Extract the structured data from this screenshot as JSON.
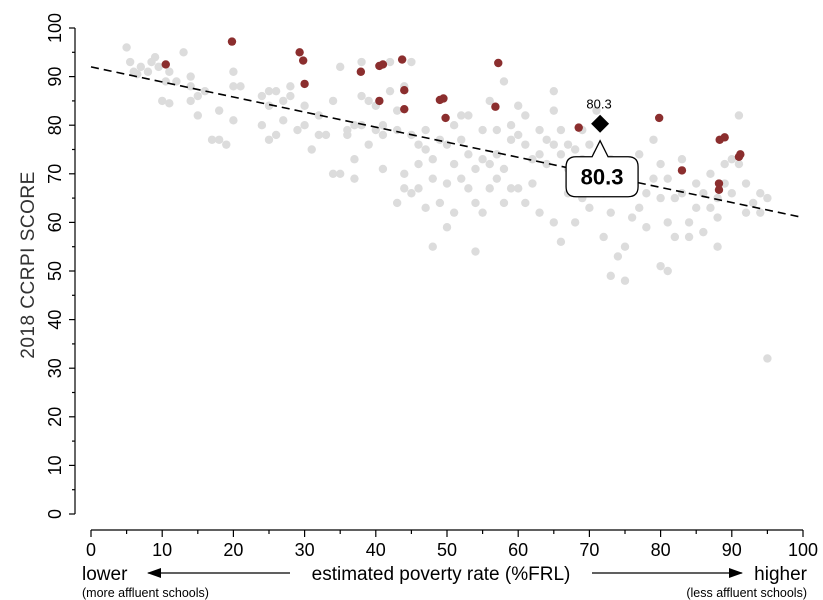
{
  "chart_data": {
    "type": "scatter",
    "title": "",
    "ylabel": "2018 CCRPI SCORE",
    "xlabel": "estimated poverty rate (%FRL)",
    "x_low_label": "lower",
    "x_low_sub": "(more affluent schools)",
    "x_high_label": "higher",
    "x_high_sub": "(less affluent schools)",
    "xlim": [
      0,
      100
    ],
    "ylim": [
      0,
      100
    ],
    "x_ticks": [
      "0",
      "10",
      "20",
      "30",
      "40",
      "50",
      "60",
      "70",
      "80",
      "90",
      "100"
    ],
    "y_ticks": [
      "0",
      "10",
      "20",
      "30",
      "40",
      "50",
      "60",
      "70",
      "80",
      "90",
      "100"
    ],
    "colors": {
      "other": "#dcdcdc",
      "highlight": "#8b2e2e",
      "target": "#000000",
      "trend": "#000000"
    },
    "trend_line": {
      "x": [
        0,
        100
      ],
      "y": [
        92,
        61
      ]
    },
    "target": {
      "x": 71.5,
      "y": 80.3,
      "label": "80.3",
      "callout": "80.3"
    },
    "series": [
      {
        "name": "",
        "color": "#dcdcdc",
        "points": [
          [
            5,
            96
          ],
          [
            5.5,
            93
          ],
          [
            6,
            91
          ],
          [
            6.5,
            90.5
          ],
          [
            7,
            92
          ],
          [
            8,
            91
          ],
          [
            8.5,
            93
          ],
          [
            9,
            94
          ],
          [
            9.5,
            92
          ],
          [
            10,
            85
          ],
          [
            10.5,
            89
          ],
          [
            11,
            84.5
          ],
          [
            11,
            91
          ],
          [
            12,
            89
          ],
          [
            13,
            95
          ],
          [
            14,
            90
          ],
          [
            14,
            88
          ],
          [
            14,
            85
          ],
          [
            15,
            82
          ],
          [
            15,
            86
          ],
          [
            16,
            87
          ],
          [
            17,
            77
          ],
          [
            18,
            77
          ],
          [
            18,
            83
          ],
          [
            19,
            76
          ],
          [
            20,
            81
          ],
          [
            20,
            88
          ],
          [
            20,
            91
          ],
          [
            21,
            88
          ],
          [
            24,
            80
          ],
          [
            24,
            86
          ],
          [
            25,
            87
          ],
          [
            25,
            77
          ],
          [
            25,
            84
          ],
          [
            26,
            78
          ],
          [
            26,
            87
          ],
          [
            27,
            85
          ],
          [
            27,
            81
          ],
          [
            28,
            86
          ],
          [
            28,
            88
          ],
          [
            29,
            79
          ],
          [
            30,
            84
          ],
          [
            30,
            80
          ],
          [
            31,
            75
          ],
          [
            32,
            82
          ],
          [
            32,
            78
          ],
          [
            33,
            78
          ],
          [
            34,
            85
          ],
          [
            34,
            70
          ],
          [
            35,
            70
          ],
          [
            35,
            92
          ],
          [
            36,
            79
          ],
          [
            36,
            78
          ],
          [
            37,
            80
          ],
          [
            37,
            69
          ],
          [
            37,
            73
          ],
          [
            38,
            86
          ],
          [
            38,
            93
          ],
          [
            38,
            80
          ],
          [
            39,
            85
          ],
          [
            39,
            76
          ],
          [
            40,
            84
          ],
          [
            40,
            79
          ],
          [
            41,
            80
          ],
          [
            41,
            78
          ],
          [
            41,
            71
          ],
          [
            42,
            93
          ],
          [
            42,
            87
          ],
          [
            43,
            83
          ],
          [
            43,
            79
          ],
          [
            43,
            64
          ],
          [
            44,
            88
          ],
          [
            44,
            70
          ],
          [
            44,
            67
          ],
          [
            45,
            93
          ],
          [
            45,
            78
          ],
          [
            45,
            66
          ],
          [
            46,
            72
          ],
          [
            46,
            76
          ],
          [
            46,
            67
          ],
          [
            47,
            79
          ],
          [
            47,
            75
          ],
          [
            47,
            63
          ],
          [
            48,
            55
          ],
          [
            48,
            73
          ],
          [
            48,
            69
          ],
          [
            49,
            64
          ],
          [
            49,
            77
          ],
          [
            50,
            76
          ],
          [
            50,
            68
          ],
          [
            50,
            59
          ],
          [
            51,
            80
          ],
          [
            51,
            72
          ],
          [
            51,
            62
          ],
          [
            52,
            82
          ],
          [
            52,
            77
          ],
          [
            52,
            69
          ],
          [
            53,
            82
          ],
          [
            53,
            74
          ],
          [
            53,
            67
          ],
          [
            54,
            71
          ],
          [
            54,
            64
          ],
          [
            54,
            54
          ],
          [
            55,
            79
          ],
          [
            55,
            73
          ],
          [
            55,
            62
          ],
          [
            56,
            85
          ],
          [
            56,
            72
          ],
          [
            56,
            67
          ],
          [
            57,
            79
          ],
          [
            57,
            74
          ],
          [
            57,
            69
          ],
          [
            58,
            89
          ],
          [
            58,
            71
          ],
          [
            58,
            64
          ],
          [
            59,
            80
          ],
          [
            59,
            77
          ],
          [
            59,
            67
          ],
          [
            60,
            84
          ],
          [
            60,
            78
          ],
          [
            60,
            67
          ],
          [
            61,
            82
          ],
          [
            61,
            76
          ],
          [
            61,
            64
          ],
          [
            62,
            73
          ],
          [
            62,
            68
          ],
          [
            63,
            79
          ],
          [
            63,
            74
          ],
          [
            63,
            62
          ],
          [
            64,
            77
          ],
          [
            64,
            72
          ],
          [
            65,
            87
          ],
          [
            65,
            83
          ],
          [
            65,
            76
          ],
          [
            65,
            60
          ],
          [
            66,
            79
          ],
          [
            66,
            74
          ],
          [
            66,
            56
          ],
          [
            67,
            76
          ],
          [
            67,
            71
          ],
          [
            67,
            66
          ],
          [
            68,
            75
          ],
          [
            68,
            60
          ],
          [
            69,
            79
          ],
          [
            69,
            73
          ],
          [
            69,
            65
          ],
          [
            70,
            76
          ],
          [
            70,
            68
          ],
          [
            70,
            63
          ],
          [
            71,
            83
          ],
          [
            71,
            74
          ],
          [
            72,
            70
          ],
          [
            72,
            66
          ],
          [
            72,
            57
          ],
          [
            73,
            73
          ],
          [
            73,
            62
          ],
          [
            73,
            49
          ],
          [
            74,
            68
          ],
          [
            74,
            53
          ],
          [
            75,
            72
          ],
          [
            75,
            55
          ],
          [
            75,
            48
          ],
          [
            76,
            67
          ],
          [
            76,
            61
          ],
          [
            77,
            74
          ],
          [
            77,
            63
          ],
          [
            78,
            66
          ],
          [
            78,
            59
          ],
          [
            79,
            77
          ],
          [
            79,
            69
          ],
          [
            80,
            72
          ],
          [
            80,
            65
          ],
          [
            80,
            51
          ],
          [
            81,
            69
          ],
          [
            81,
            60
          ],
          [
            81,
            50
          ],
          [
            82,
            65
          ],
          [
            82,
            57
          ],
          [
            83,
            73
          ],
          [
            83,
            66
          ],
          [
            84,
            60
          ],
          [
            84,
            57
          ],
          [
            85,
            68
          ],
          [
            85,
            63
          ],
          [
            86,
            66
          ],
          [
            86,
            58
          ],
          [
            87,
            70
          ],
          [
            87,
            63
          ],
          [
            88,
            65
          ],
          [
            88,
            61
          ],
          [
            88,
            55
          ],
          [
            89,
            72
          ],
          [
            89,
            68
          ],
          [
            90,
            66
          ],
          [
            90,
            73
          ],
          [
            91,
            72
          ],
          [
            91,
            82
          ],
          [
            92,
            68
          ],
          [
            92,
            62
          ],
          [
            93,
            64
          ],
          [
            94,
            62
          ],
          [
            94,
            66
          ],
          [
            95,
            65
          ],
          [
            95,
            32
          ]
        ]
      },
      {
        "name": "",
        "color": "#8b2e2e",
        "points": [
          [
            10.5,
            92.5
          ],
          [
            19.8,
            97.2
          ],
          [
            29.3,
            95
          ],
          [
            29.8,
            93.3
          ],
          [
            30,
            88.5
          ],
          [
            37.9,
            91
          ],
          [
            40.5,
            92.2
          ],
          [
            41,
            92.5
          ],
          [
            40.5,
            85
          ],
          [
            43.7,
            93.5
          ],
          [
            44,
            87.2
          ],
          [
            44,
            83.3
          ],
          [
            49,
            85.2
          ],
          [
            49.5,
            85.5
          ],
          [
            49.8,
            81.5
          ],
          [
            56.8,
            83.8
          ],
          [
            57.2,
            92.8
          ],
          [
            68.5,
            79.5
          ],
          [
            79.8,
            81.5
          ],
          [
            83,
            70.7
          ],
          [
            88.2,
            68
          ],
          [
            88.2,
            66.7
          ],
          [
            88.3,
            77
          ],
          [
            89,
            77.5
          ],
          [
            91,
            73.5
          ],
          [
            91.2,
            74
          ]
        ]
      }
    ]
  }
}
